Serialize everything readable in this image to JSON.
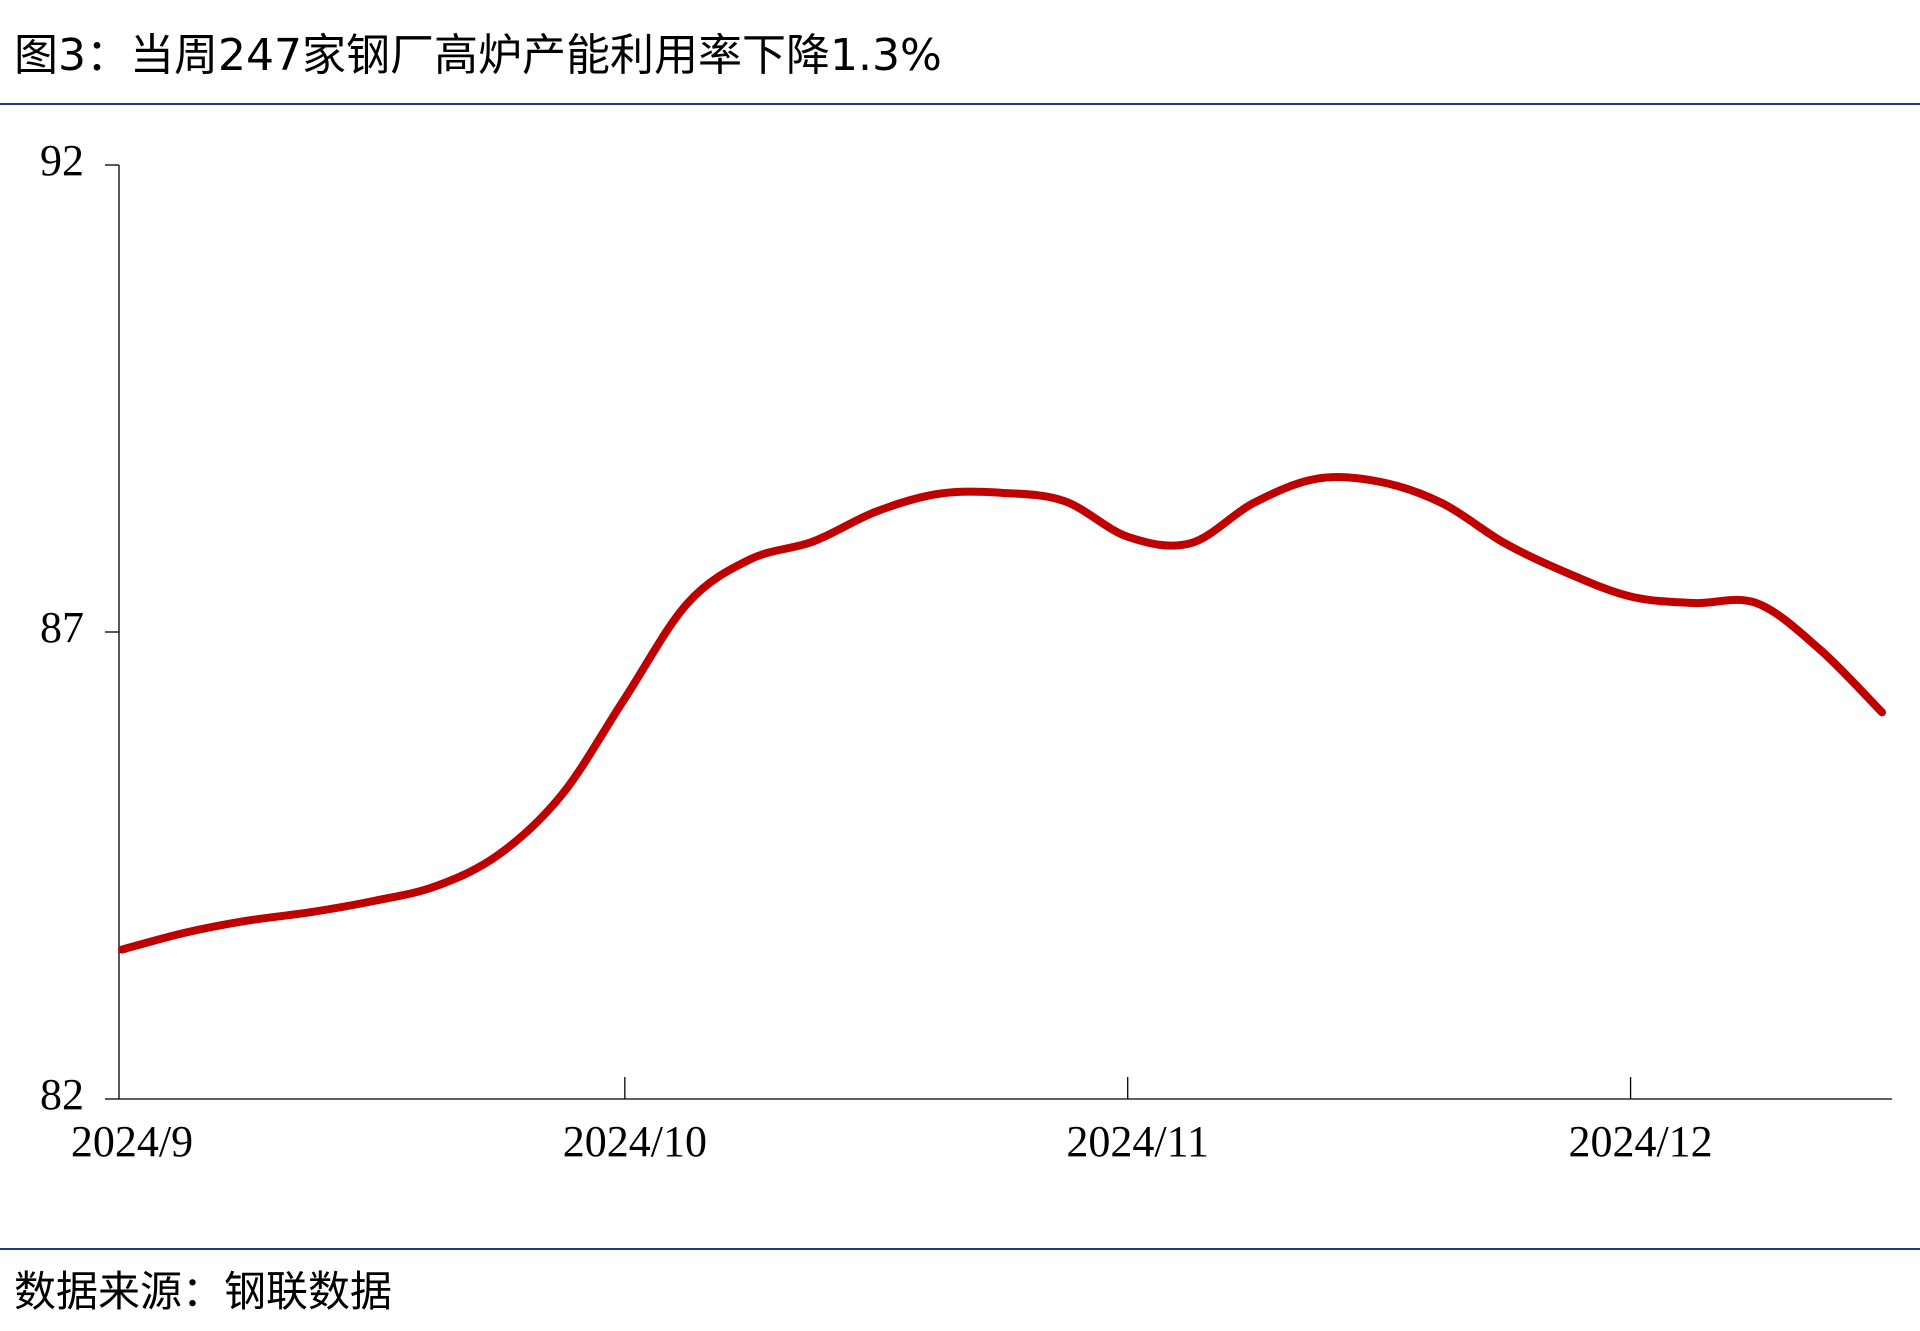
{
  "chart_data": {
    "type": "line",
    "title": "图3：当周247家钢厂高炉产能利用率下降1.3%",
    "source": "数据来源：钢联数据",
    "categories": [
      "2024/9",
      null,
      null,
      null,
      null,
      null,
      null,
      null,
      "2024/10",
      null,
      null,
      null,
      null,
      null,
      null,
      null,
      "2024/11",
      null,
      null,
      null,
      null,
      null,
      null,
      null,
      "2024/12",
      null,
      null,
      null,
      null
    ],
    "values": [
      83.6,
      83.78,
      83.91,
      84.0,
      84.12,
      84.28,
      84.62,
      85.26,
      86.29,
      87.31,
      87.78,
      87.97,
      88.29,
      88.48,
      88.49,
      88.4,
      88.02,
      87.95,
      88.38,
      88.64,
      88.61,
      88.38,
      87.95,
      87.63,
      87.38,
      87.31,
      87.31,
      86.82,
      86.14
    ],
    "color": "#c00000",
    "ylim": [
      82,
      92
    ],
    "yticks": [
      82,
      87,
      92
    ]
  }
}
